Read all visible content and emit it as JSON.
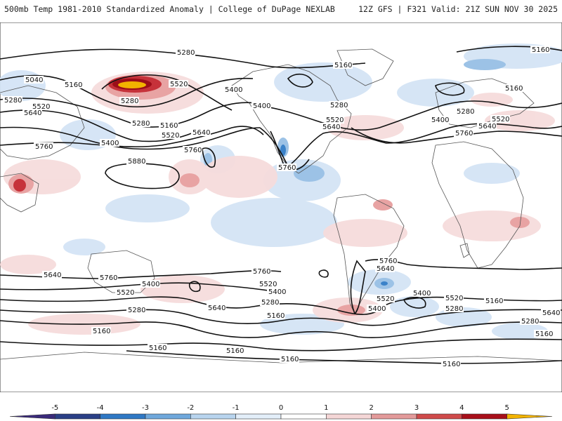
{
  "header": {
    "left": "500mb Temp 1981-2010 Standardized Anomaly | College of DuPage NEXLAB",
    "right": "12Z GFS | F321 Valid: 21Z SUN NOV 30 2025"
  },
  "colorbar": {
    "ticks": [
      "-5",
      "-4",
      "-3",
      "-2",
      "-1",
      "0",
      "1",
      "2",
      "3",
      "4",
      "5"
    ],
    "colors": [
      "#3a2a7a",
      "#2a3f86",
      "#2f78c4",
      "#6fa8dc",
      "#b8d4ee",
      "#e3eef9",
      "#ffffff",
      "#f4d6d6",
      "#e39a9a",
      "#cf4a4a",
      "#a80f1a",
      "#f2b300"
    ]
  },
  "contour_labels": [
    {
      "id": "c1",
      "text": "5280"
    },
    {
      "id": "c2",
      "text": "5160"
    },
    {
      "id": "c3",
      "text": "5040"
    },
    {
      "id": "c4",
      "text": "5160"
    },
    {
      "id": "c5",
      "text": "5280"
    },
    {
      "id": "c6",
      "text": "5520"
    },
    {
      "id": "c7",
      "text": "5640"
    },
    {
      "id": "c8",
      "text": "5520"
    },
    {
      "id": "c9",
      "text": "5400"
    },
    {
      "id": "c10",
      "text": "5280"
    },
    {
      "id": "c11",
      "text": "5280"
    },
    {
      "id": "c12",
      "text": "5160"
    },
    {
      "id": "c13",
      "text": "5400"
    },
    {
      "id": "c14",
      "text": "5520"
    },
    {
      "id": "c15",
      "text": "5640"
    },
    {
      "id": "c16",
      "text": "5760"
    },
    {
      "id": "c17",
      "text": "5760"
    },
    {
      "id": "c18",
      "text": "5880"
    },
    {
      "id": "c19",
      "text": "5160"
    },
    {
      "id": "c20",
      "text": "5400"
    },
    {
      "id": "c21",
      "text": "5280"
    },
    {
      "id": "c22",
      "text": "5520"
    },
    {
      "id": "c23",
      "text": "5640"
    },
    {
      "id": "c24",
      "text": "5760"
    },
    {
      "id": "c25",
      "text": "5160"
    },
    {
      "id": "c26",
      "text": "5280"
    },
    {
      "id": "c27",
      "text": "5400"
    },
    {
      "id": "c28",
      "text": "5640"
    },
    {
      "id": "c29",
      "text": "5520"
    },
    {
      "id": "c30",
      "text": "5760"
    },
    {
      "id": "c31",
      "text": "5640"
    },
    {
      "id": "c32",
      "text": "5760"
    },
    {
      "id": "c33",
      "text": "5400"
    },
    {
      "id": "c34",
      "text": "5520"
    },
    {
      "id": "c35",
      "text": "5280"
    },
    {
      "id": "c36",
      "text": "5160"
    },
    {
      "id": "c37",
      "text": "5640"
    },
    {
      "id": "c38",
      "text": "5760"
    },
    {
      "id": "c39",
      "text": "5520"
    },
    {
      "id": "c40",
      "text": "5400"
    },
    {
      "id": "c41",
      "text": "5280"
    },
    {
      "id": "c42",
      "text": "5160"
    },
    {
      "id": "c43",
      "text": "5160"
    },
    {
      "id": "c44",
      "text": "5640"
    },
    {
      "id": "c45",
      "text": "5520"
    },
    {
      "id": "c46",
      "text": "5400"
    },
    {
      "id": "c47",
      "text": "5280"
    },
    {
      "id": "c48",
      "text": "5160"
    },
    {
      "id": "c49",
      "text": "5760"
    },
    {
      "id": "c50",
      "text": "5640"
    },
    {
      "id": "c51",
      "text": "5520"
    },
    {
      "id": "c52",
      "text": "5400"
    },
    {
      "id": "c53",
      "text": "5280"
    },
    {
      "id": "c54",
      "text": "5160"
    },
    {
      "id": "c55",
      "text": "5160"
    },
    {
      "id": "c56",
      "text": "5160"
    },
    {
      "id": "c57",
      "text": "5160"
    }
  ]
}
